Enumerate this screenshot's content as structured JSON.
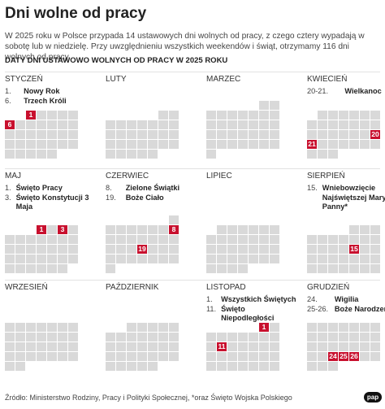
{
  "header": {
    "title": "Dni wolne od pracy",
    "intro": "W 2025 roku w Polsce przypada 14 ustawowych dni wolnych od pracy, z czego cztery wypadają w sobotę lub w niedzielę. Przy uwzględnieniu wszystkich weekendów i świąt, otrzymamy 116 dni wolnych od pracy.",
    "subtitle": "DATY DNI USTAWOWO WOLNYCH OD PRACY W 2025 ROKU"
  },
  "months": [
    {
      "name": "STYCZEŃ",
      "holidays": [
        {
          "date": "1.",
          "name": "Nowy Rok"
        },
        {
          "date": "6.",
          "name": "Trzech Króli"
        }
      ],
      "highlighted": [
        1,
        6
      ]
    },
    {
      "name": "LUTY",
      "holidays": [],
      "highlighted": []
    },
    {
      "name": "MARZEC",
      "holidays": [],
      "highlighted": []
    },
    {
      "name": "KWIECIEŃ",
      "holidays": [
        {
          "date": "20-21.",
          "name": "Wielkanoc"
        }
      ],
      "highlighted": [
        20,
        21
      ]
    },
    {
      "name": "MAJ",
      "holidays": [
        {
          "date": "1.",
          "name": "Święto Pracy"
        },
        {
          "date": "3.",
          "name": "Święto Konstytucji 3 Maja"
        }
      ],
      "highlighted": [
        1,
        3
      ]
    },
    {
      "name": "CZERWIEC",
      "holidays": [
        {
          "date": "8.",
          "name": "Zielone Świątki"
        },
        {
          "date": "19.",
          "name": "Boże Ciało"
        }
      ],
      "highlighted": [
        8,
        19
      ]
    },
    {
      "name": "LIPIEC",
      "holidays": [],
      "highlighted": []
    },
    {
      "name": "SIERPIEŃ",
      "holidays": [
        {
          "date": "15.",
          "name": "Wniebowzięcie Najświętszej Maryi Panny*"
        }
      ],
      "highlighted": [
        15
      ]
    },
    {
      "name": "WRZESIEŃ",
      "holidays": [],
      "highlighted": []
    },
    {
      "name": "PAŹDZIERNIK",
      "holidays": [],
      "highlighted": []
    },
    {
      "name": "LISTOPAD",
      "holidays": [
        {
          "date": "1.",
          "name": "Wszystkich Świętych"
        },
        {
          "date": "11.",
          "name": "Święto Niepodległości"
        }
      ],
      "highlighted": [
        1,
        11
      ]
    },
    {
      "name": "GRUDZIEŃ",
      "holidays": [
        {
          "date": "24.",
          "name": "Wigilia"
        },
        {
          "date": "25-26.",
          "name": "Boże Narodzenie"
        }
      ],
      "highlighted": [
        24,
        25,
        26
      ]
    }
  ],
  "footer": {
    "source": "Źródło: Ministerstwo Rodziny, Pracy i Polityki Społecznej, *oraz Święto Wojska Polskiego",
    "logo": "pap"
  }
}
